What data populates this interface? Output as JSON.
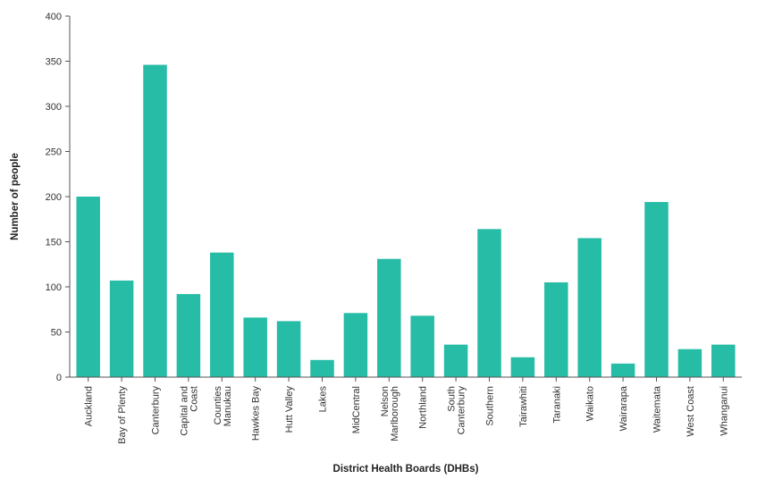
{
  "chart_data": {
    "type": "bar",
    "title": "",
    "xlabel": "District Health Boards (DHBs)",
    "ylabel": "Number of people",
    "ylim": [
      0,
      400
    ],
    "yticks": [
      0,
      50,
      100,
      150,
      200,
      250,
      300,
      350,
      400
    ],
    "grid": false,
    "bar_color": "#26bca6",
    "categories": [
      [
        "Auckland"
      ],
      [
        "Bay of Plenty"
      ],
      [
        "Canterbury"
      ],
      [
        "Capital and",
        "Coast"
      ],
      [
        "Counties",
        "Manukau"
      ],
      [
        "Hawkes Bay"
      ],
      [
        "Hutt Valley"
      ],
      [
        "Lakes"
      ],
      [
        "MidCentral"
      ],
      [
        "Nelson",
        "Marlborough"
      ],
      [
        "Northland"
      ],
      [
        "South",
        "Canterbury"
      ],
      [
        "Southern"
      ],
      [
        "Tairawhiti"
      ],
      [
        "Taranaki"
      ],
      [
        "Waikato"
      ],
      [
        "Wairarapa"
      ],
      [
        "Waitemata"
      ],
      [
        "West Coast"
      ],
      [
        "Whanganui"
      ]
    ],
    "values": [
      200,
      107,
      346,
      92,
      138,
      66,
      62,
      19,
      71,
      131,
      68,
      36,
      164,
      22,
      105,
      154,
      15,
      194,
      31,
      36
    ]
  }
}
